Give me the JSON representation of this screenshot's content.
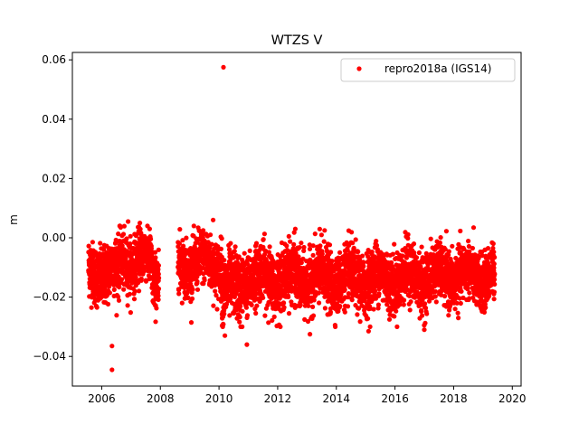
{
  "chart_data": {
    "type": "scatter",
    "title": "WTZS V",
    "xlabel": "",
    "ylabel": "m",
    "xlim": [
      2005.0,
      2020.3
    ],
    "ylim": [
      -0.05,
      0.0625
    ],
    "x_ticks": [
      2006,
      2008,
      2010,
      2012,
      2014,
      2016,
      2018,
      2020
    ],
    "x_tick_labels": [
      "2006",
      "2008",
      "2010",
      "2012",
      "2014",
      "2016",
      "2018",
      "2020"
    ],
    "y_ticks": [
      -0.04,
      -0.02,
      0.0,
      0.02,
      0.04,
      0.06
    ],
    "y_tick_labels": [
      "−0.04",
      "−0.02",
      "0.00",
      "0.02",
      "0.04",
      "0.06"
    ],
    "grid": false,
    "legend_position": "upper right",
    "series": [
      {
        "name": "repro2018a (IGS14)",
        "color": "#ff0000",
        "marker": "circle",
        "segments": [
          {
            "start": 2005.55,
            "end": 2006.6,
            "mean": -0.0115,
            "noise": 0.0065
          },
          {
            "start": 2006.6,
            "end": 2007.7,
            "mean": -0.0075,
            "noise": 0.006
          },
          {
            "start": 2007.7,
            "end": 2007.95,
            "mean": -0.0135,
            "noise": 0.0065
          },
          {
            "start": 2008.6,
            "end": 2010.1,
            "mean": -0.0085,
            "noise": 0.006
          },
          {
            "start": 2010.1,
            "end": 2010.8,
            "mean": -0.0175,
            "noise": 0.0075
          },
          {
            "start": 2010.8,
            "end": 2013.0,
            "mean": -0.0135,
            "noise": 0.0065
          },
          {
            "start": 2013.0,
            "end": 2015.0,
            "mean": -0.014,
            "noise": 0.0065
          },
          {
            "start": 2015.0,
            "end": 2017.0,
            "mean": -0.0135,
            "noise": 0.0065
          },
          {
            "start": 2017.0,
            "end": 2019.4,
            "mean": -0.013,
            "noise": 0.006
          }
        ],
        "outliers": [
          {
            "x": 2010.15,
            "y": 0.0575
          },
          {
            "x": 2006.35,
            "y": -0.0365
          },
          {
            "x": 2006.35,
            "y": -0.0445
          },
          {
            "x": 2010.2,
            "y": -0.033
          },
          {
            "x": 2010.95,
            "y": -0.036
          },
          {
            "x": 2013.1,
            "y": -0.0325
          },
          {
            "x": 2015.1,
            "y": -0.0315
          },
          {
            "x": 2017.0,
            "y": -0.031
          },
          {
            "x": 2007.3,
            "y": 0.005
          },
          {
            "x": 2009.8,
            "y": 0.006
          },
          {
            "x": 2012.6,
            "y": 0.003
          },
          {
            "x": 2013.6,
            "y": 0.0025
          },
          {
            "x": 2006.9,
            "y": 0.0055
          }
        ]
      }
    ]
  }
}
